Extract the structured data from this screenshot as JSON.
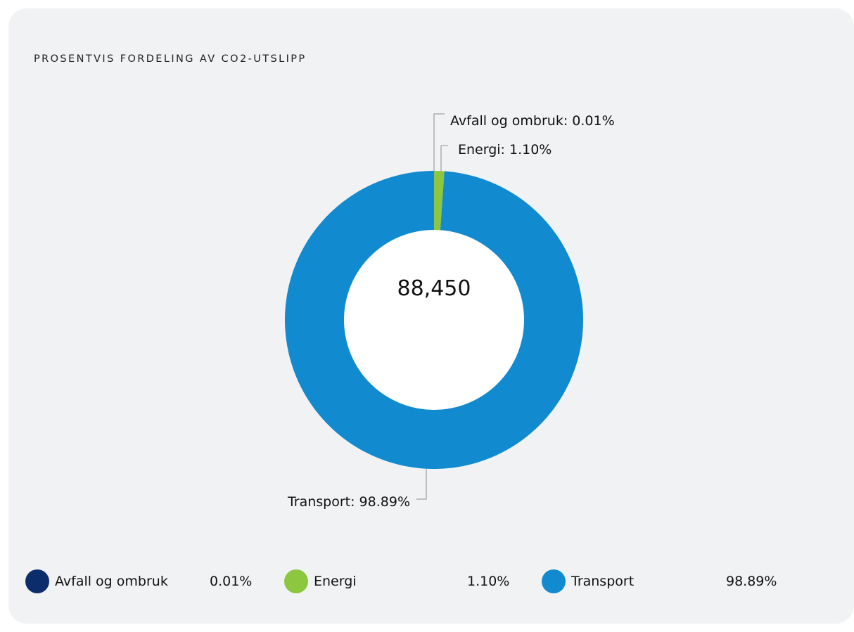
{
  "card": {
    "title": "PROSENTVIS FORDELING AV CO2-UTSLIPP"
  },
  "chart_data": {
    "type": "pie",
    "variant": "donut",
    "center_value": "88,450",
    "slices": [
      {
        "name": "Avfall og ombruk",
        "value": 0.01,
        "label": "Avfall og ombruk: 0.01%",
        "legend_value": "0.01%",
        "color": "#0c2d6b"
      },
      {
        "name": "Energi",
        "value": 1.1,
        "label": "Energi: 1.10%",
        "legend_value": "1.10%",
        "color": "#8dc63f"
      },
      {
        "name": "Transport",
        "value": 98.89,
        "label": "Transport: 98.89%",
        "legend_value": "98.89%",
        "color": "#118acf"
      }
    ],
    "legend_position": "bottom"
  }
}
